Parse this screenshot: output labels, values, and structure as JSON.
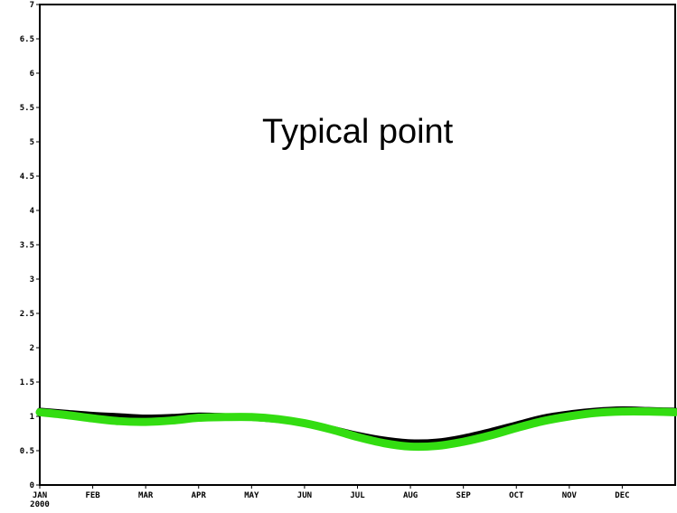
{
  "chart_data": {
    "type": "line",
    "title": "",
    "xlabel": "",
    "ylabel": "",
    "annotation": "Typical point",
    "ylim": [
      0,
      7
    ],
    "grid": false,
    "y_ticks": [
      {
        "value": 0,
        "label": "0"
      },
      {
        "value": 0.5,
        "label": "0.5"
      },
      {
        "value": 1,
        "label": "1"
      },
      {
        "value": 1.5,
        "label": "1.5"
      },
      {
        "value": 2,
        "label": "2"
      },
      {
        "value": 2.5,
        "label": "2.5"
      },
      {
        "value": 3,
        "label": "3"
      },
      {
        "value": 3.5,
        "label": "3.5"
      },
      {
        "value": 4,
        "label": "4"
      },
      {
        "value": 4.5,
        "label": "4.5"
      },
      {
        "value": 5,
        "label": "5"
      },
      {
        "value": 5.5,
        "label": "5.5"
      },
      {
        "value": 6,
        "label": "6"
      },
      {
        "value": 6.5,
        "label": "6.5"
      },
      {
        "value": 7,
        "label": "7"
      }
    ],
    "x_ticks": [
      {
        "label": "JAN",
        "sublabel": "2000"
      },
      {
        "label": "FEB"
      },
      {
        "label": "MAR"
      },
      {
        "label": "APR"
      },
      {
        "label": "MAY"
      },
      {
        "label": "JUN"
      },
      {
        "label": "JUL"
      },
      {
        "label": "AUG"
      },
      {
        "label": "SEP"
      },
      {
        "label": "OCT"
      },
      {
        "label": "NOV"
      },
      {
        "label": "DEC"
      }
    ],
    "x_domain": [
      0,
      12
    ],
    "series": [
      {
        "color": "#000000",
        "x": [
          0,
          0.5,
          1,
          1.5,
          2,
          2.5,
          3,
          3.5,
          4,
          4.5,
          5,
          5.5,
          6,
          6.5,
          7,
          7.5,
          8,
          8.5,
          9,
          9.5,
          10,
          10.5,
          11,
          11.5,
          12
        ],
        "values": [
          1.08,
          1.05,
          1.02,
          1.0,
          0.98,
          0.99,
          1.01,
          1.0,
          0.98,
          0.95,
          0.9,
          0.82,
          0.73,
          0.66,
          0.62,
          0.63,
          0.69,
          0.78,
          0.88,
          0.98,
          1.04,
          1.08,
          1.1,
          1.09,
          1.08
        ]
      },
      {
        "color": "#33dd11",
        "x": [
          0,
          0.5,
          1,
          1.5,
          2,
          2.5,
          3,
          3.5,
          4,
          4.5,
          5,
          5.5,
          6,
          6.5,
          7,
          7.5,
          8,
          8.5,
          9,
          9.5,
          10,
          10.5,
          11,
          11.5,
          12
        ],
        "values": [
          1.06,
          1.02,
          0.97,
          0.93,
          0.92,
          0.94,
          0.98,
          0.99,
          0.99,
          0.96,
          0.9,
          0.81,
          0.7,
          0.61,
          0.56,
          0.57,
          0.63,
          0.72,
          0.83,
          0.93,
          1.0,
          1.05,
          1.07,
          1.07,
          1.06
        ]
      }
    ]
  }
}
